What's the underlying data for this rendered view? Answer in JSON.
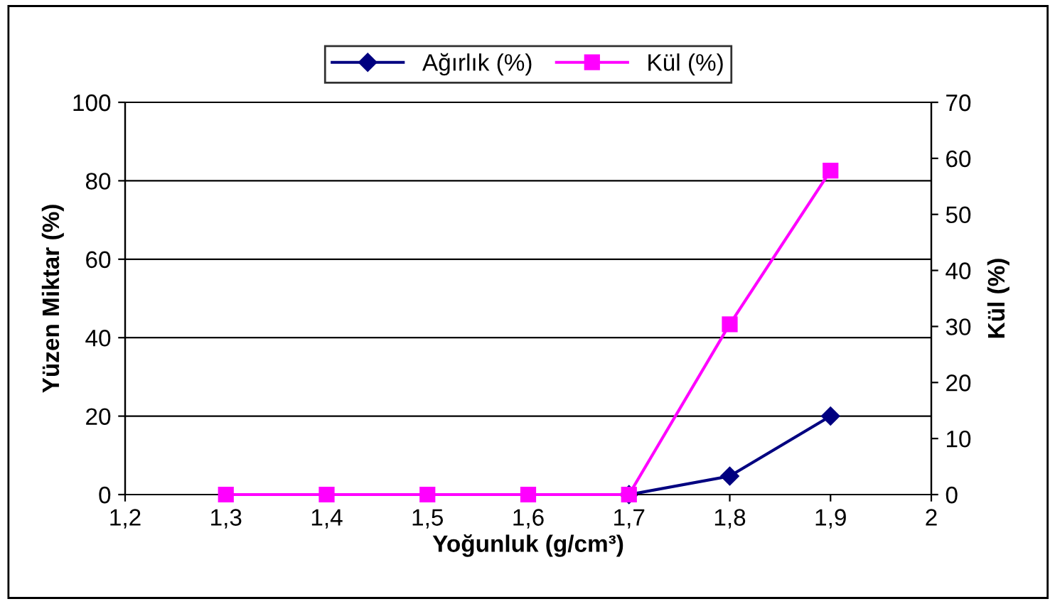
{
  "chart_data": {
    "type": "line",
    "xlabel": "Yoğunluk (g/cm³)",
    "ylabel": "Yüzen Miktar (%)",
    "y2label": "Kül (%)",
    "x": [
      1.3,
      1.4,
      1.5,
      1.6,
      1.7,
      1.8,
      1.9
    ],
    "series": [
      {
        "name": "Ağırlık (%)",
        "color": "#000080",
        "marker": "diamond",
        "values": [
          null,
          null,
          null,
          null,
          0,
          4.7,
          20
        ]
      },
      {
        "name": "Kül (%)",
        "color": "#ff00ff",
        "marker": "square",
        "axis": "y2",
        "values": [
          0,
          0,
          0,
          0,
          0,
          30.4,
          57.8
        ]
      }
    ],
    "xlim": [
      1.2,
      2
    ],
    "xticks": [
      {
        "value": 1.2,
        "label": "1,2"
      },
      {
        "value": 1.3,
        "label": "1,3"
      },
      {
        "value": 1.4,
        "label": "1,4"
      },
      {
        "value": 1.5,
        "label": "1,5"
      },
      {
        "value": 1.6,
        "label": "1,6"
      },
      {
        "value": 1.7,
        "label": "1,7"
      },
      {
        "value": 1.8,
        "label": "1,8"
      },
      {
        "value": 1.9,
        "label": "1,9"
      },
      {
        "value": 2,
        "label": "2"
      }
    ],
    "ylim": [
      0,
      100
    ],
    "yticks": [
      0,
      20,
      40,
      60,
      80,
      100
    ],
    "y2lim": [
      0,
      70
    ],
    "y2ticks": [
      0,
      10,
      20,
      30,
      40,
      50,
      60,
      70
    ],
    "grid": "y",
    "legend": "top"
  }
}
